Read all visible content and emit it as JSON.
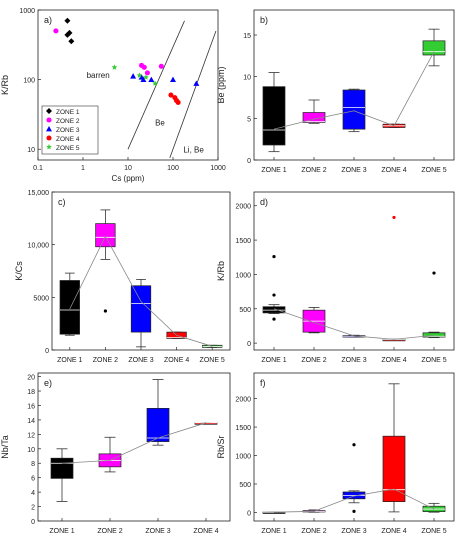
{
  "colors": {
    "zone1": "#000000",
    "zone2": "#ff00ff",
    "zone3": "#0000ff",
    "zone4": "#ff0000",
    "zone5": "#33cc33",
    "mean_line": "#888888",
    "axis": "#222222"
  },
  "chart_data": [
    {
      "id": "a",
      "panel_label": "a)",
      "type": "scatter",
      "xlabel": "Cs (ppm)",
      "ylabel": "K/Rb",
      "x_scale": "log",
      "y_scale": "log",
      "xlim": [
        0.1,
        1000
      ],
      "ylim": [
        7,
        1000
      ],
      "x_ticks": [
        0.1,
        1,
        10,
        100,
        1000
      ],
      "x_tick_labels": [
        "0.1",
        "1",
        "10",
        "100",
        "1000"
      ],
      "y_ticks": [
        10,
        100,
        1000
      ],
      "y_tick_labels": [
        "10",
        "100",
        "1000"
      ],
      "legend_position": "bottom-left",
      "series": [
        {
          "name": "ZONE 1",
          "marker": "diamond",
          "color_key": "zone1",
          "points": [
            [
              0.45,
              700
            ],
            [
              0.5,
              470
            ],
            [
              0.45,
              440
            ],
            [
              0.55,
              355
            ]
          ]
        },
        {
          "name": "ZONE 2",
          "marker": "circle",
          "color_key": "zone2",
          "points": [
            [
              0.25,
              500
            ],
            [
              20,
              160
            ],
            [
              23,
              150
            ],
            [
              55,
              155
            ],
            [
              27,
              125
            ]
          ]
        },
        {
          "name": "ZONE 3",
          "marker": "triangle",
          "color_key": "zone3",
          "points": [
            [
              13,
              112
            ],
            [
              20,
              108
            ],
            [
              22,
              100
            ],
            [
              33,
              100
            ],
            [
              100,
              100
            ],
            [
              330,
              88
            ]
          ]
        },
        {
          "name": "ZONE 4",
          "marker": "circle",
          "color_key": "zone4",
          "points": [
            [
              90,
              60
            ],
            [
              110,
              55
            ],
            [
              120,
              50
            ],
            [
              130,
              47
            ]
          ]
        },
        {
          "name": "ZONE 5",
          "marker": "star",
          "color_key": "zone5",
          "points": [
            [
              5,
              150
            ],
            [
              18,
              115
            ],
            [
              40,
              88
            ],
            [
              25,
              108
            ]
          ]
        }
      ],
      "boundary_lines": [
        {
          "from": [
            10,
            10
          ],
          "to": [
            180,
            700
          ]
        },
        {
          "from": [
            85,
            7.5
          ],
          "to": [
            900,
            500
          ]
        }
      ],
      "annotations": [
        {
          "text": "barren",
          "at": [
            1.2,
            105
          ]
        },
        {
          "text": "Be",
          "at": [
            40,
            22
          ]
        },
        {
          "text": "Li, Be",
          "at": [
            170,
            9
          ]
        }
      ]
    },
    {
      "id": "b",
      "panel_label": "b)",
      "type": "box",
      "ylabel": "Be (ppm)",
      "ylim": [
        0,
        18
      ],
      "y_ticks": [
        0,
        5,
        10,
        15
      ],
      "categories": [
        "ZONE 1",
        "ZONE 2",
        "ZONE 3",
        "ZONE 4",
        "ZONE 5"
      ],
      "boxes": [
        {
          "whisker_low": 1,
          "q1": 1.8,
          "median": 3.6,
          "q3": 8.8,
          "whisker_high": 10.5,
          "color_key": "zone1"
        },
        {
          "whisker_low": 4.4,
          "q1": 4.5,
          "median": 4.6,
          "q3": 5.7,
          "whisker_high": 7.2,
          "color_key": "zone2"
        },
        {
          "whisker_low": 3.4,
          "q1": 3.7,
          "median": 6.3,
          "q3": 8.4,
          "whisker_high": 8.5,
          "color_key": "zone3"
        },
        {
          "whisker_low": 3.9,
          "q1": 3.9,
          "median": 4.1,
          "q3": 4.3,
          "whisker_high": 4.3,
          "color_key": "zone4"
        },
        {
          "whisker_low": 11.3,
          "q1": 12.6,
          "median": 13,
          "q3": 14.3,
          "whisker_high": 15.7,
          "color_key": "zone5"
        }
      ],
      "means": [
        3.7,
        4.9,
        5.9,
        4.1,
        13
      ],
      "outliers": []
    },
    {
      "id": "c",
      "panel_label": "c)",
      "type": "box",
      "ylabel": "K/Cs",
      "ylim": [
        0,
        15000
      ],
      "y_ticks": [
        0,
        5000,
        10000,
        15000
      ],
      "y_tick_labels": [
        "0",
        "5000",
        "10,000",
        "15,000"
      ],
      "categories": [
        "ZONE 1",
        "ZONE 2",
        "ZONE 3",
        "ZONE 4",
        "ZONE 5"
      ],
      "boxes": [
        {
          "whisker_low": 1400,
          "q1": 1500,
          "median": 3800,
          "q3": 6600,
          "whisker_high": 7300,
          "color_key": "zone1"
        },
        {
          "whisker_low": 8600,
          "q1": 9800,
          "median": 10700,
          "q3": 12000,
          "whisker_high": 13300,
          "color_key": "zone2"
        },
        {
          "whisker_low": 300,
          "q1": 1700,
          "median": 4400,
          "q3": 6100,
          "whisker_high": 6700,
          "color_key": "zone3"
        },
        {
          "whisker_low": 1100,
          "q1": 1100,
          "median": 1200,
          "q3": 1700,
          "whisker_high": 1700,
          "color_key": "zone4"
        },
        {
          "whisker_low": 250,
          "q1": 250,
          "median": 330,
          "q3": 450,
          "whisker_high": 450,
          "color_key": "zone5"
        }
      ],
      "means": [
        3900,
        10800,
        4600,
        1400,
        350
      ],
      "outliers": [
        {
          "category": 1,
          "value": 3700
        }
      ]
    },
    {
      "id": "d",
      "panel_label": "d)",
      "type": "box",
      "ylabel": "K/Rb",
      "ylim": [
        -100,
        2200
      ],
      "y_ticks": [
        0,
        500,
        1000,
        1500,
        2000
      ],
      "categories": [
        "ZONE 1",
        "ZONE 2",
        "ZONE 3",
        "ZONE 4",
        "ZONE 5"
      ],
      "boxes": [
        {
          "whisker_low": 430,
          "q1": 440,
          "median": 480,
          "q3": 530,
          "whisker_high": 560,
          "color_key": "zone1"
        },
        {
          "whisker_low": 150,
          "q1": 160,
          "median": 320,
          "q3": 480,
          "whisker_high": 520,
          "color_key": "zone2"
        },
        {
          "whisker_low": 88,
          "q1": 95,
          "median": 100,
          "q3": 110,
          "whisker_high": 115,
          "color_key": "zone3"
        },
        {
          "whisker_low": 45,
          "q1": 47,
          "median": 50,
          "q3": 55,
          "whisker_high": 58,
          "color_key": "zone4"
        },
        {
          "whisker_low": 80,
          "q1": 88,
          "median": 100,
          "q3": 150,
          "whisker_high": 160,
          "color_key": "zone5"
        }
      ],
      "means": [
        500,
        300,
        105,
        55,
        115
      ],
      "outliers": [
        {
          "category": 0,
          "value": 1260,
          "color_key": "zone1"
        },
        {
          "category": 0,
          "value": 700,
          "color_key": "zone1"
        },
        {
          "category": 0,
          "value": 350,
          "color_key": "zone1"
        },
        {
          "category": 3,
          "value": 1830,
          "color_key": "zone4"
        },
        {
          "category": 4,
          "value": 1020,
          "color_key": "zone1"
        }
      ]
    },
    {
      "id": "e",
      "panel_label": "e)",
      "type": "box",
      "ylabel": "Nb/Ta",
      "ylim": [
        0,
        20.5
      ],
      "y_ticks": [
        0,
        2,
        4,
        6,
        8,
        10,
        12,
        14,
        16,
        18,
        20
      ],
      "categories": [
        "ZONE 1",
        "ZONE 2",
        "ZONE 3",
        "ZONE 4"
      ],
      "boxes": [
        {
          "whisker_low": 2.7,
          "q1": 5.9,
          "median": 8,
          "q3": 8.7,
          "whisker_high": 10,
          "color_key": "zone1"
        },
        {
          "whisker_low": 6.8,
          "q1": 7.5,
          "median": 8.4,
          "q3": 9.3,
          "whisker_high": 11.6,
          "color_key": "zone2"
        },
        {
          "whisker_low": 10.5,
          "q1": 11,
          "median": 11.5,
          "q3": 15.6,
          "whisker_high": 19.6,
          "color_key": "zone3"
        },
        {
          "whisker_low": 13.6,
          "q1": 13.6,
          "median": 13.6,
          "q3": 13.6,
          "whisker_high": 13.6,
          "color_key": "zone4"
        }
      ],
      "means": [
        8,
        8.4,
        11.5,
        13.6
      ],
      "outliers": []
    },
    {
      "id": "f",
      "panel_label": "f)",
      "type": "box",
      "ylabel": "Rb/Sr",
      "ylim": [
        -150,
        2450
      ],
      "y_ticks": [
        0,
        500,
        1000,
        1500,
        2000
      ],
      "categories": [
        "ZONE 1",
        "ZONE 2",
        "ZONE 3",
        "ZONE 4",
        "ZONE 5"
      ],
      "boxes": [
        {
          "whisker_low": 2,
          "q1": 3,
          "median": 5,
          "q3": 8,
          "whisker_high": 10,
          "color_key": "zone1"
        },
        {
          "whisker_low": 5,
          "q1": 10,
          "median": 20,
          "q3": 35,
          "whisker_high": 45,
          "color_key": "zone2"
        },
        {
          "whisker_low": 170,
          "q1": 240,
          "median": 300,
          "q3": 360,
          "whisker_high": 380,
          "color_key": "zone3"
        },
        {
          "whisker_low": 10,
          "q1": 190,
          "median": 400,
          "q3": 1340,
          "whisker_high": 2260,
          "color_key": "zone4"
        },
        {
          "whisker_low": 5,
          "q1": 15,
          "median": 60,
          "q3": 110,
          "whisker_high": 160,
          "color_key": "zone5"
        }
      ],
      "means": [
        5,
        20,
        290,
        410,
        60
      ],
      "outliers": [
        {
          "category": 2,
          "value": 1190,
          "color_key": "zone1"
        },
        {
          "category": 2,
          "value": 20,
          "color_key": "zone1"
        }
      ]
    }
  ]
}
